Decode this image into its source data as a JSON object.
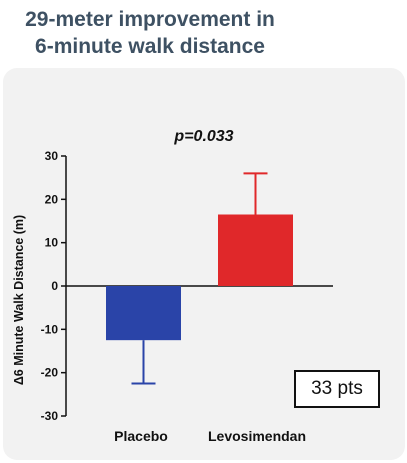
{
  "slide": {
    "title_line1": "29-meter improvement in",
    "title_line2": "6-minute walk distance"
  },
  "pts_box": "33 pts",
  "colors": {
    "title": "#3e5163",
    "placebo": "#2a44a8",
    "levosimendan": "#e0282a"
  },
  "chart_data": {
    "type": "bar",
    "title": "",
    "annotation": "p=0.033",
    "categories": [
      "Placebo",
      "Levosimendan"
    ],
    "values": [
      -12.5,
      16.5
    ],
    "error_bars": [
      {
        "direction": "down",
        "end": -22.5
      },
      {
        "direction": "up",
        "end": 26
      }
    ],
    "bar_colors": [
      "#2a44a8",
      "#e0282a"
    ],
    "ylabel": "Δ6 Minute Walk Distance (m)",
    "ylim": [
      -30,
      30
    ],
    "yticks": [
      -30,
      -20,
      -10,
      0,
      10,
      20,
      30
    ],
    "ytick_labels": [
      "-30",
      "-20",
      "-10",
      "0",
      "10",
      "20",
      "30"
    ],
    "grid": false
  }
}
